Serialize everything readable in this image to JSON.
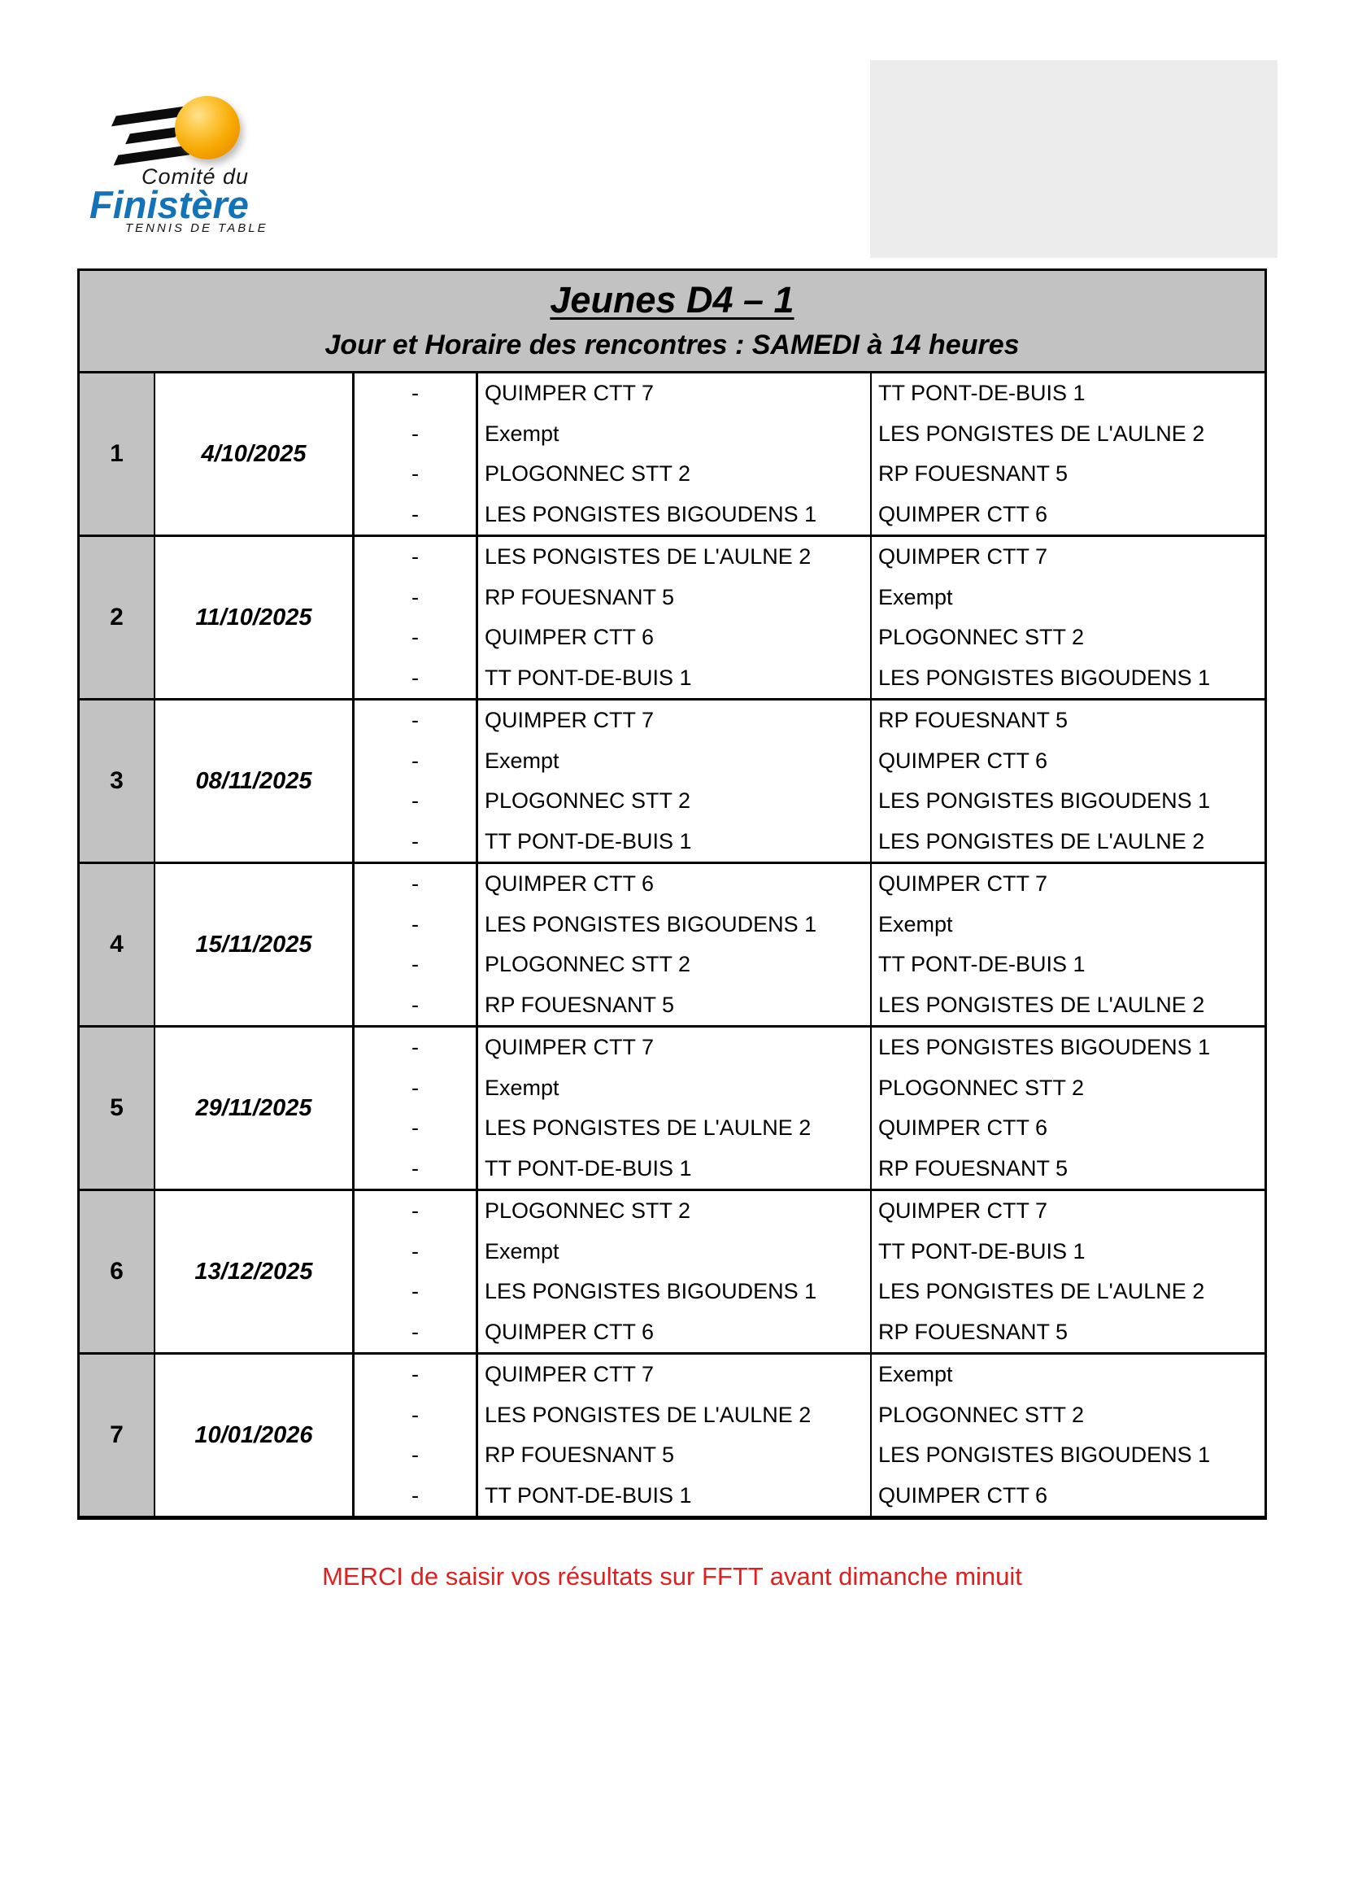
{
  "logo": {
    "line1": "Comité du",
    "line2": "Finistère",
    "line3": "TENNIS DE TABLE",
    "brand_blue": "#1273b8",
    "ball_orange": "#f6a800"
  },
  "header": {
    "title": "Jeunes D4 – 1",
    "subtitle": "Jour et Horaire des rencontres : SAMEDI à 14 heures",
    "background": "#c2c2c2"
  },
  "table": {
    "separator": "-"
  },
  "rounds": [
    {
      "number": "1",
      "date": "4/10/2025",
      "matches": [
        {
          "home": "QUIMPER CTT 7",
          "away": "TT PONT-DE-BUIS 1"
        },
        {
          "home": "Exempt",
          "away": "LES PONGISTES DE L'AULNE 2"
        },
        {
          "home": "PLOGONNEC STT 2",
          "away": "RP FOUESNANT 5"
        },
        {
          "home": "LES PONGISTES BIGOUDENS 1",
          "away": "QUIMPER CTT 6"
        }
      ]
    },
    {
      "number": "2",
      "date": "11/10/2025",
      "matches": [
        {
          "home": "LES PONGISTES DE L'AULNE 2",
          "away": "QUIMPER CTT 7"
        },
        {
          "home": "RP FOUESNANT 5",
          "away": "Exempt"
        },
        {
          "home": "QUIMPER CTT 6",
          "away": "PLOGONNEC STT 2"
        },
        {
          "home": "TT PONT-DE-BUIS 1",
          "away": "LES PONGISTES BIGOUDENS 1"
        }
      ]
    },
    {
      "number": "3",
      "date": "08/11/2025",
      "matches": [
        {
          "home": "QUIMPER CTT 7",
          "away": "RP FOUESNANT 5"
        },
        {
          "home": "Exempt",
          "away": "QUIMPER CTT 6"
        },
        {
          "home": "PLOGONNEC STT 2",
          "away": "LES PONGISTES BIGOUDENS 1"
        },
        {
          "home": "TT PONT-DE-BUIS 1",
          "away": "LES PONGISTES DE L'AULNE 2"
        }
      ]
    },
    {
      "number": "4",
      "date": "15/11/2025",
      "matches": [
        {
          "home": "QUIMPER CTT 6",
          "away": "QUIMPER CTT 7"
        },
        {
          "home": "LES PONGISTES BIGOUDENS 1",
          "away": "Exempt"
        },
        {
          "home": "PLOGONNEC STT 2",
          "away": "TT PONT-DE-BUIS 1"
        },
        {
          "home": "RP FOUESNANT 5",
          "away": "LES PONGISTES DE L'AULNE 2"
        }
      ]
    },
    {
      "number": "5",
      "date": "29/11/2025",
      "matches": [
        {
          "home": "QUIMPER CTT 7",
          "away": "LES PONGISTES BIGOUDENS 1"
        },
        {
          "home": "Exempt",
          "away": "PLOGONNEC STT 2"
        },
        {
          "home": "LES PONGISTES DE L'AULNE 2",
          "away": "QUIMPER CTT 6"
        },
        {
          "home": "TT PONT-DE-BUIS 1",
          "away": "RP FOUESNANT 5"
        }
      ]
    },
    {
      "number": "6",
      "date": "13/12/2025",
      "matches": [
        {
          "home": "PLOGONNEC STT 2",
          "away": "QUIMPER CTT 7"
        },
        {
          "home": "Exempt",
          "away": "TT PONT-DE-BUIS 1"
        },
        {
          "home": "LES PONGISTES BIGOUDENS 1",
          "away": "LES PONGISTES DE L'AULNE 2"
        },
        {
          "home": "QUIMPER CTT 6",
          "away": "RP FOUESNANT 5"
        }
      ]
    },
    {
      "number": "7",
      "date": "10/01/2026",
      "matches": [
        {
          "home": "QUIMPER CTT 7",
          "away": "Exempt"
        },
        {
          "home": "LES PONGISTES DE L'AULNE 2",
          "away": "PLOGONNEC STT 2"
        },
        {
          "home": "RP FOUESNANT 5",
          "away": "LES PONGISTES BIGOUDENS 1"
        },
        {
          "home": "TT PONT-DE-BUIS 1",
          "away": "QUIMPER CTT 6"
        }
      ]
    }
  ],
  "footer": {
    "notice": "MERCI de saisir vos résultats sur FFTT  avant dimanche minuit",
    "color": "#e02020"
  }
}
